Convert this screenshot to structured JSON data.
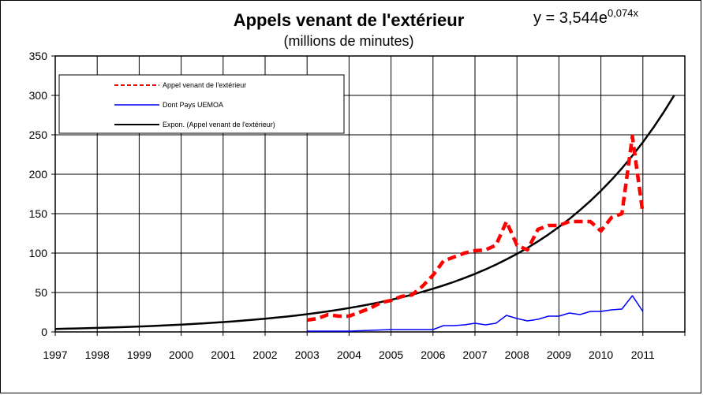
{
  "chart_data": {
    "type": "line",
    "title": "Appels venant de l'extérieur",
    "subtitle": "(millions de minutes)",
    "equation": {
      "base": "y = 3,544e",
      "exponent": "0,074x"
    },
    "x_ticks": [
      "1997",
      "1998",
      "1999",
      "2000",
      "2001",
      "2002",
      "2003",
      "2004",
      "2005",
      "2006",
      "2007",
      "2008",
      "2009",
      "2010",
      "2011"
    ],
    "xlim": [
      1997,
      2012
    ],
    "ylim": [
      0,
      350
    ],
    "y_ticks": [
      0,
      50,
      100,
      150,
      200,
      250,
      300,
      350
    ],
    "grid": true,
    "legend": {
      "placement": "top-left",
      "entries": [
        {
          "label": "Appel venant de l'extérieur",
          "color": "#ff0000",
          "style": "dashed"
        },
        {
          "label": "Dont Pays UEMOA",
          "color": "#0000ff",
          "style": "solid"
        },
        {
          "label": "Expon. (Appel venant de l'extérieur)",
          "color": "#000000",
          "style": "solid"
        }
      ]
    },
    "series": [
      {
        "name": "Appel venant de l'extérieur",
        "color": "#ff0000",
        "style": "dashed",
        "points": [
          [
            2003.0,
            15
          ],
          [
            2003.25,
            17
          ],
          [
            2003.5,
            22
          ],
          [
            2003.75,
            20
          ],
          [
            2004.0,
            20
          ],
          [
            2004.25,
            25
          ],
          [
            2004.5,
            30
          ],
          [
            2004.75,
            37
          ],
          [
            2005.0,
            40
          ],
          [
            2005.25,
            45
          ],
          [
            2005.5,
            47
          ],
          [
            2005.75,
            58
          ],
          [
            2006.0,
            72
          ],
          [
            2006.25,
            90
          ],
          [
            2006.5,
            95
          ],
          [
            2006.75,
            100
          ],
          [
            2007.0,
            103
          ],
          [
            2007.25,
            104
          ],
          [
            2007.5,
            110
          ],
          [
            2007.75,
            140
          ],
          [
            2008.0,
            110
          ],
          [
            2008.25,
            104
          ],
          [
            2008.5,
            130
          ],
          [
            2008.75,
            135
          ],
          [
            2009.0,
            135
          ],
          [
            2009.25,
            140
          ],
          [
            2009.5,
            140
          ],
          [
            2009.75,
            140
          ],
          [
            2010.0,
            128
          ],
          [
            2010.25,
            145
          ],
          [
            2010.5,
            150
          ],
          [
            2010.75,
            248
          ],
          [
            2011.0,
            150
          ]
        ]
      },
      {
        "name": "Dont Pays UEMOA",
        "color": "#0000ff",
        "style": "solid",
        "points": [
          [
            2003.0,
            1
          ],
          [
            2003.5,
            1
          ],
          [
            2004.0,
            1
          ],
          [
            2004.5,
            2
          ],
          [
            2005.0,
            3
          ],
          [
            2005.5,
            3
          ],
          [
            2006.0,
            3
          ],
          [
            2006.25,
            8
          ],
          [
            2006.5,
            8
          ],
          [
            2006.75,
            9
          ],
          [
            2007.0,
            11
          ],
          [
            2007.25,
            9
          ],
          [
            2007.5,
            11
          ],
          [
            2007.75,
            21
          ],
          [
            2008.0,
            17
          ],
          [
            2008.25,
            14
          ],
          [
            2008.5,
            16
          ],
          [
            2008.75,
            20
          ],
          [
            2009.0,
            20
          ],
          [
            2009.25,
            24
          ],
          [
            2009.5,
            22
          ],
          [
            2009.75,
            26
          ],
          [
            2010.0,
            26
          ],
          [
            2010.25,
            28
          ],
          [
            2010.5,
            29
          ],
          [
            2010.75,
            46
          ],
          [
            2011.0,
            26
          ]
        ]
      },
      {
        "name": "Expon. (Appel venant de l'extérieur)",
        "color": "#000000",
        "style": "solid",
        "trend": {
          "a": 3.544,
          "b": 0.074,
          "points_per_year": 4,
          "from": 1997,
          "to": 2011.75
        }
      }
    ]
  }
}
